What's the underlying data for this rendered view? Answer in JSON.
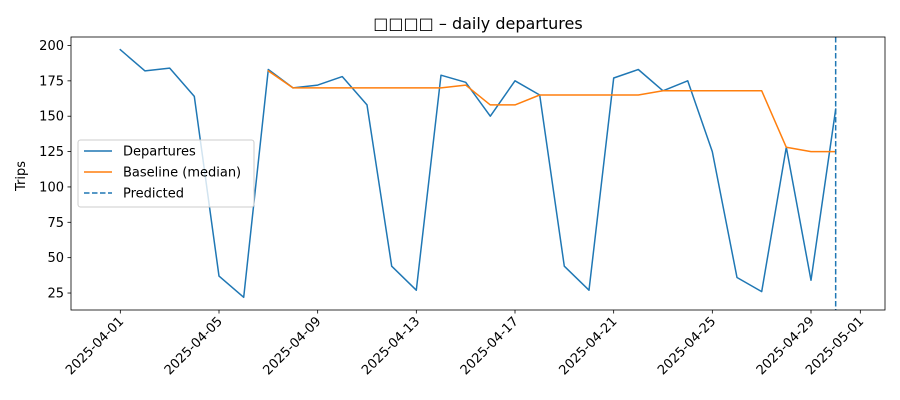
{
  "chart_data": {
    "type": "line",
    "title": "□□□□ – daily departures",
    "xlabel": "",
    "ylabel": "Trips",
    "xlim": [
      "2025-03-30",
      "2025-05-02"
    ],
    "ylim": [
      13,
      206
    ],
    "grid": false,
    "legend_position": "center-left",
    "x_ticks": [
      "2025-04-01",
      "2025-04-05",
      "2025-04-09",
      "2025-04-13",
      "2025-04-17",
      "2025-04-21",
      "2025-04-25",
      "2025-04-29",
      "2025-05-01"
    ],
    "y_ticks": [
      25,
      50,
      75,
      100,
      125,
      150,
      175,
      200
    ],
    "series": [
      {
        "name": "Departures",
        "color": "#1f77b4",
        "style": "solid",
        "x": [
          "2025-04-01",
          "2025-04-02",
          "2025-04-03",
          "2025-04-04",
          "2025-04-05",
          "2025-04-06",
          "2025-04-07",
          "2025-04-08",
          "2025-04-09",
          "2025-04-10",
          "2025-04-11",
          "2025-04-12",
          "2025-04-13",
          "2025-04-14",
          "2025-04-15",
          "2025-04-16",
          "2025-04-17",
          "2025-04-18",
          "2025-04-19",
          "2025-04-20",
          "2025-04-21",
          "2025-04-22",
          "2025-04-23",
          "2025-04-24",
          "2025-04-25",
          "2025-04-26",
          "2025-04-27",
          "2025-04-28",
          "2025-04-29",
          "2025-04-30"
        ],
        "values": [
          197,
          182,
          184,
          164,
          37,
          22,
          183,
          170,
          172,
          178,
          158,
          44,
          27,
          179,
          174,
          150,
          175,
          165,
          44,
          27,
          177,
          183,
          168,
          175,
          125,
          36,
          26,
          128,
          34,
          155
        ]
      },
      {
        "name": "Baseline (median)",
        "color": "#ff7f0e",
        "style": "solid",
        "x": [
          "2025-04-07",
          "2025-04-08",
          "2025-04-09",
          "2025-04-10",
          "2025-04-11",
          "2025-04-12",
          "2025-04-13",
          "2025-04-14",
          "2025-04-15",
          "2025-04-16",
          "2025-04-17",
          "2025-04-18",
          "2025-04-19",
          "2025-04-20",
          "2025-04-21",
          "2025-04-22",
          "2025-04-23",
          "2025-04-24",
          "2025-04-25",
          "2025-04-26",
          "2025-04-27",
          "2025-04-28",
          "2025-04-29",
          "2025-04-30"
        ],
        "values": [
          182,
          170,
          170,
          170,
          170,
          170,
          170,
          170,
          172,
          158,
          158,
          165,
          165,
          165,
          165,
          165,
          168,
          168,
          168,
          168,
          168,
          128,
          125,
          125
        ]
      }
    ],
    "vlines": [
      {
        "name": "Predicted",
        "x": "2025-04-30",
        "color": "#1f77b4",
        "style": "dashed"
      }
    ]
  }
}
